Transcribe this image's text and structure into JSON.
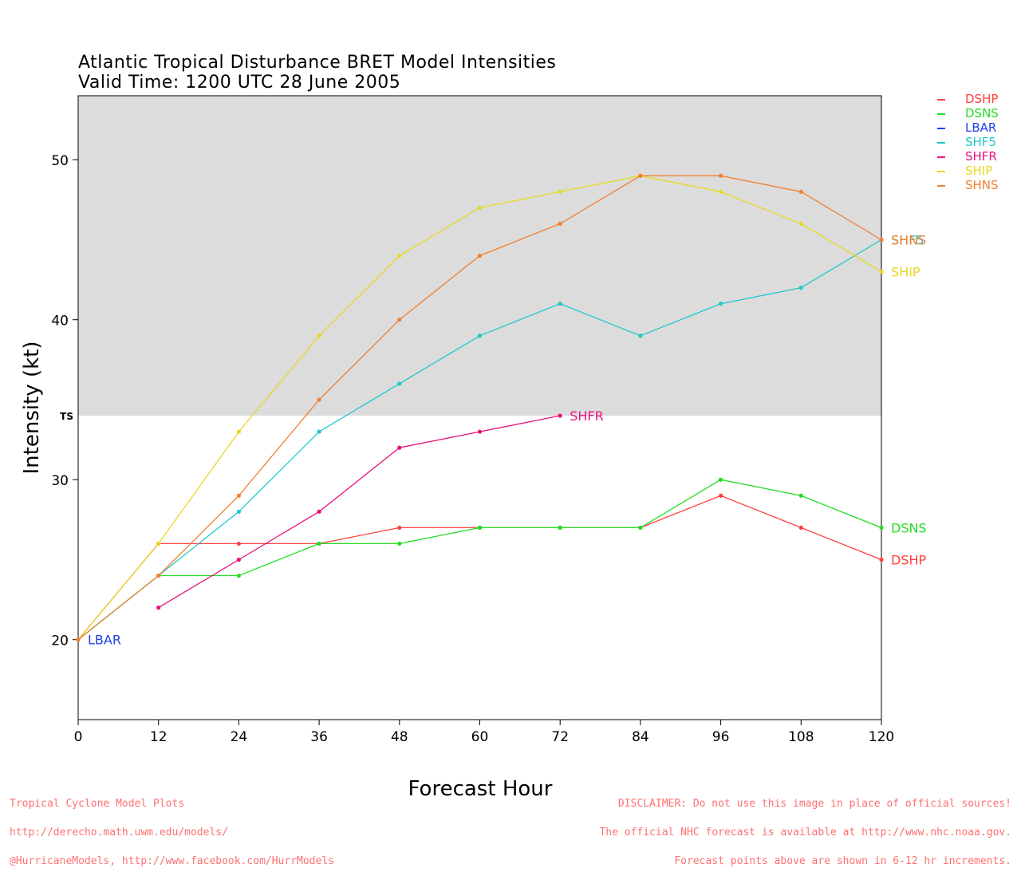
{
  "chart_data": {
    "type": "line",
    "title": "Atlantic Tropical Disturbance BRET Model Intensities",
    "subtitle": "Valid Time: 1200 UTC 28 June 2005",
    "xlabel": "Forecast Hour",
    "ylabel": "Intensity (kt)",
    "xlim": [
      0,
      120
    ],
    "ylim": [
      15,
      54
    ],
    "xticks": [
      0,
      12,
      24,
      36,
      48,
      60,
      72,
      84,
      96,
      108,
      120
    ],
    "yticks": [
      20,
      30,
      40,
      50
    ],
    "shaded_region": {
      "label": "TS",
      "from": 34,
      "to": 54,
      "color": "#dcdcdc"
    },
    "series": [
      {
        "name": "DSHP",
        "color": "#ff4040",
        "x": [
          0,
          12,
          24,
          36,
          48,
          60,
          72,
          84,
          96,
          108,
          120
        ],
        "y": [
          20,
          26,
          26,
          26,
          27,
          27,
          27,
          27,
          29,
          27,
          25
        ],
        "end_label": "DSHP"
      },
      {
        "name": "DSNS",
        "color": "#22dd22",
        "x": [
          0,
          12,
          24,
          36,
          48,
          60,
          72,
          84,
          96,
          108,
          120
        ],
        "y": [
          20,
          24,
          24,
          26,
          26,
          27,
          27,
          27,
          30,
          29,
          27
        ],
        "end_label": "DSNS"
      },
      {
        "name": "LBAR",
        "color": "#2040ee",
        "x": [
          0
        ],
        "y": [
          20
        ],
        "end_label": "LBAR"
      },
      {
        "name": "SHF5",
        "color": "#20c8c8",
        "x": [
          0,
          12,
          24,
          36,
          48,
          60,
          72,
          84,
          96,
          108,
          120
        ],
        "y": [
          20,
          24,
          28,
          33,
          36,
          39,
          41,
          39,
          41,
          42,
          45
        ],
        "end_label": "SHF5"
      },
      {
        "name": "SHFR",
        "color": "#e8107f",
        "x": [
          12,
          24,
          36,
          48,
          60,
          72
        ],
        "y": [
          22,
          25,
          28,
          32,
          33,
          34
        ],
        "end_label": "SHFR"
      },
      {
        "name": "SHIP",
        "color": "#e8d820",
        "x": [
          0,
          12,
          24,
          36,
          48,
          60,
          72,
          84,
          96,
          108,
          120
        ],
        "y": [
          20,
          26,
          33,
          39,
          44,
          47,
          48,
          49,
          48,
          46,
          43
        ],
        "end_label": "SHIP"
      },
      {
        "name": "SHNS",
        "color": "#f08030",
        "x": [
          0,
          12,
          24,
          36,
          48,
          60,
          72,
          84,
          96,
          108,
          120
        ],
        "y": [
          20,
          24,
          29,
          35,
          40,
          44,
          46,
          49,
          49,
          48,
          45
        ],
        "end_label": "SHNS"
      }
    ],
    "legend_position": "top-right"
  },
  "footer": {
    "left": [
      "Tropical Cyclone Model Plots",
      "http://derecho.math.uwm.edu/models/",
      "@HurricaneModels, http://www.facebook.com/HurrModels"
    ],
    "right": [
      "DISCLAIMER: Do not use this image in place of official sources!",
      "The official NHC forecast is available at http://www.nhc.noaa.gov.",
      "Forecast points above are shown in 6-12 hr increments."
    ]
  }
}
